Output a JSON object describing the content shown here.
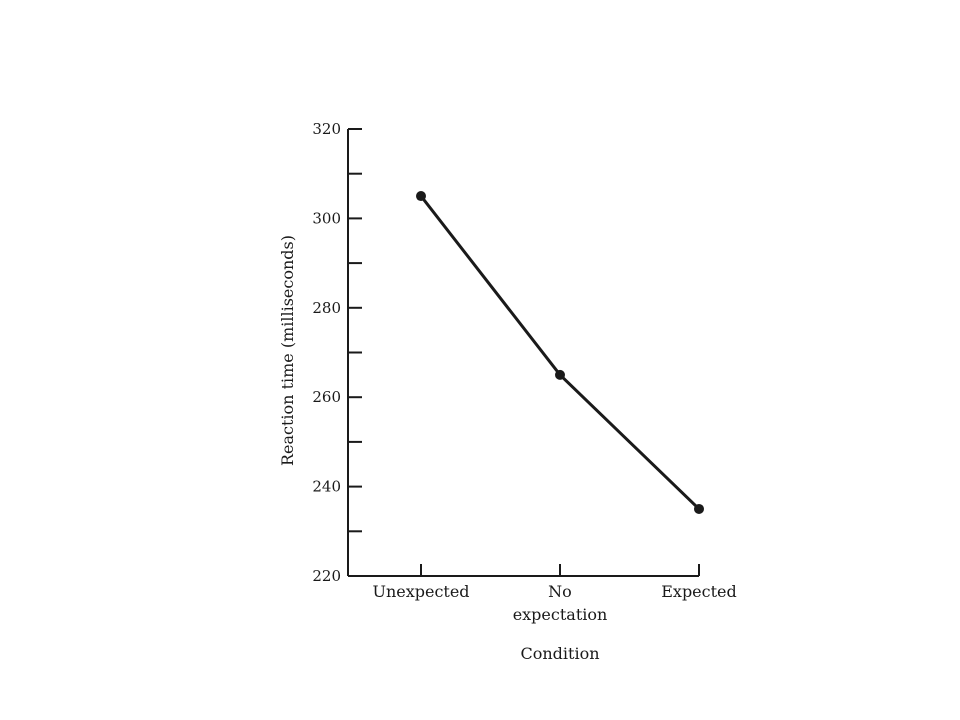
{
  "chart_data": {
    "type": "line",
    "title": "",
    "xlabel": "Condition",
    "ylabel": "Reaction time (milliseconds)",
    "categories": [
      [
        "Unexpected"
      ],
      [
        "No",
        "expectation"
      ],
      [
        "Expected"
      ]
    ],
    "series": [
      {
        "values": [
          305,
          265,
          235
        ]
      }
    ],
    "ylim": [
      220,
      320
    ],
    "yticks": [
      220,
      240,
      260,
      280,
      300,
      320
    ],
    "yticks_minor": [
      230,
      250,
      270,
      290,
      310
    ],
    "grid": false,
    "legend": "none",
    "colors": {
      "line": "#1a1a1a",
      "axis": "#1a1a1a"
    }
  }
}
